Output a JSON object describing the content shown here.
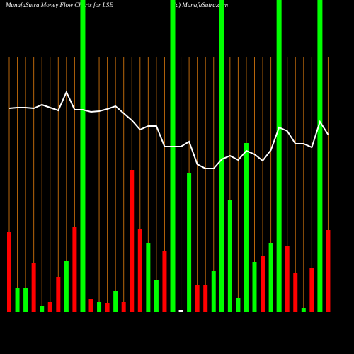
{
  "chart_data": {
    "type": "bar",
    "title": "MunafaSutra  Money Flow  Charts for LSE",
    "credit": "(c) MunafaSutra.com",
    "values": [
      113,
      33,
      33,
      69,
      8,
      14,
      49,
      72,
      119,
      440,
      17,
      14,
      12,
      29,
      13,
      200,
      117,
      97,
      45,
      86,
      440,
      2,
      195,
      37,
      38,
      57,
      440,
      157,
      19,
      238,
      70,
      79,
      97,
      440,
      93,
      55,
      5,
      61,
      440,
      115
    ],
    "colors": [
      "#ff0000",
      "#00ff00",
      "#00ff00",
      "#ff0000",
      "#00ff00",
      "#ff0000",
      "#ff0000",
      "#00ff00",
      "#ff0000",
      "#00ff00",
      "#ff0000",
      "#00ff00",
      "#ff0000",
      "#00ff00",
      "#ff0000",
      "#ff0000",
      "#ff0000",
      "#00ff00",
      "#00ff00",
      "#ff0000",
      "#00ff00",
      "#ffffff",
      "#00ff00",
      "#ff0000",
      "#ff0000",
      "#00ff00",
      "#00ff00",
      "#00ff00",
      "#00ff00",
      "#00ff00",
      "#00ff00",
      "#ff0000",
      "#00ff00",
      "#00ff00",
      "#ff0000",
      "#ff0000",
      "#00ff00",
      "#ff0000",
      "#00ff00",
      "#ff0000"
    ],
    "line": {
      "color": "#ffffff",
      "values": [
        287,
        288,
        288,
        287,
        292,
        288,
        284,
        310,
        285,
        285,
        282,
        283,
        286,
        290,
        280,
        270,
        257,
        262,
        262,
        233,
        233,
        233,
        240,
        208,
        202,
        202,
        215,
        220,
        214,
        227,
        222,
        213,
        228,
        260,
        255,
        237,
        237,
        232,
        268,
        250
      ]
    },
    "ylim": [
      0,
      440
    ],
    "grid": true,
    "grid_color": "#b8660b"
  }
}
